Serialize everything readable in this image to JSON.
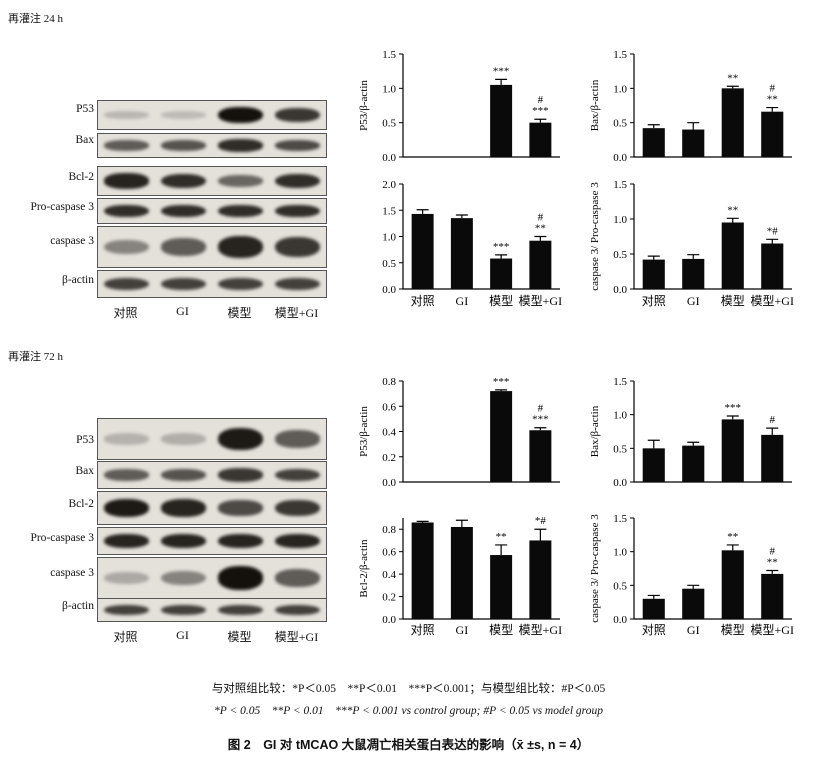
{
  "sections": [
    {
      "id": "s24",
      "label": "再灌注 24 h",
      "blot_rows": [
        "P53",
        "Bax",
        "Bcl-2",
        "Pro-caspase 3",
        "caspase 3",
        "β-actin"
      ],
      "blot_groups": [
        "对照",
        "GI",
        "模型",
        "模型+GI"
      ],
      "blot_intensity": [
        [
          0.08,
          0.06,
          0.95,
          0.75
        ],
        [
          0.55,
          0.6,
          0.8,
          0.65
        ],
        [
          0.85,
          0.8,
          0.5,
          0.8
        ],
        [
          0.8,
          0.8,
          0.8,
          0.8
        ],
        [
          0.35,
          0.55,
          0.85,
          0.75
        ],
        [
          0.7,
          0.7,
          0.7,
          0.7
        ]
      ],
      "charts": [
        {
          "ylabel": "P53/β-actin",
          "ylim": [
            0,
            1.5
          ],
          "ticks": [
            "0.0",
            "0.5",
            "1.0",
            "1.5"
          ],
          "tick_vals": [
            0,
            0.5,
            1.0,
            1.5
          ],
          "values": [
            0,
            0,
            1.05,
            0.5
          ],
          "errors": [
            0,
            0,
            0.08,
            0.05
          ],
          "sig": [
            [
              "",
              ""
            ],
            [
              "",
              ""
            ],
            [
              "***",
              ""
            ],
            [
              "***",
              "#"
            ]
          ]
        },
        {
          "ylabel": "Bax/β-actin",
          "ylim": [
            0,
            1.5
          ],
          "ticks": [
            "0.0",
            "0.5",
            "1.0",
            "1.5"
          ],
          "tick_vals": [
            0,
            0.5,
            1.0,
            1.5
          ],
          "values": [
            0.42,
            0.4,
            1.0,
            0.66
          ],
          "errors": [
            0.05,
            0.1,
            0.03,
            0.06
          ],
          "sig": [
            [
              "",
              ""
            ],
            [
              "",
              ""
            ],
            [
              "**",
              ""
            ],
            [
              "**",
              "#"
            ]
          ]
        },
        {
          "ylabel": "",
          "ylim": [
            0,
            2.0
          ],
          "ticks": [
            "0.0",
            "0.5",
            "1.0",
            "1.5",
            "2.0"
          ],
          "tick_vals": [
            0,
            0.5,
            1.0,
            1.5,
            2.0
          ],
          "values": [
            1.43,
            1.35,
            0.58,
            0.92
          ],
          "errors": [
            0.08,
            0.06,
            0.07,
            0.08
          ],
          "sig": [
            [
              "",
              ""
            ],
            [
              "",
              ""
            ],
            [
              "***",
              ""
            ],
            [
              "**",
              "#"
            ]
          ]
        },
        {
          "ylabel": "caspase 3/ Pro-caspase 3",
          "ylim": [
            0,
            1.5
          ],
          "ticks": [
            "0.0",
            "0.5",
            "1.0",
            "1.5"
          ],
          "tick_vals": [
            0,
            0.5,
            1.0,
            1.5
          ],
          "values": [
            0.42,
            0.43,
            0.95,
            0.65
          ],
          "errors": [
            0.05,
            0.06,
            0.06,
            0.06
          ],
          "sig": [
            [
              "",
              ""
            ],
            [
              "",
              ""
            ],
            [
              "**",
              ""
            ],
            [
              "*#",
              ""
            ]
          ]
        }
      ],
      "x_groups": [
        "对照",
        "GI",
        "模型",
        "模型+GI"
      ]
    },
    {
      "id": "s72",
      "label": "再灌注 72 h",
      "blot_rows": [
        "P53",
        "Bax",
        "Bcl-2",
        "Pro-caspase 3",
        "caspase 3",
        "β-actin"
      ],
      "blot_groups": [
        "对照",
        "GI",
        "模型",
        "模型+GI"
      ],
      "blot_intensity": [
        [
          0.1,
          0.12,
          0.9,
          0.55
        ],
        [
          0.55,
          0.6,
          0.75,
          0.7
        ],
        [
          0.9,
          0.85,
          0.65,
          0.75
        ],
        [
          0.85,
          0.85,
          0.85,
          0.85
        ],
        [
          0.15,
          0.35,
          0.95,
          0.55
        ],
        [
          0.7,
          0.7,
          0.7,
          0.7
        ]
      ],
      "charts": [
        {
          "ylabel": "P53/β-actin",
          "ylim": [
            0,
            0.8
          ],
          "ticks": [
            "0.0",
            "0.2",
            "0.4",
            "0.6",
            "0.8"
          ],
          "tick_vals": [
            0,
            0.2,
            0.4,
            0.6,
            0.8
          ],
          "values": [
            0,
            0,
            0.72,
            0.41
          ],
          "errors": [
            0,
            0,
            0.01,
            0.02
          ],
          "sig": [
            [
              "",
              ""
            ],
            [
              "",
              ""
            ],
            [
              "***",
              ""
            ],
            [
              "***",
              "#"
            ]
          ]
        },
        {
          "ylabel": "Bax/β-actin",
          "ylim": [
            0,
            1.5
          ],
          "ticks": [
            "0.0",
            "0.5",
            "1.0",
            "1.5"
          ],
          "tick_vals": [
            0,
            0.5,
            1.0,
            1.5
          ],
          "values": [
            0.5,
            0.54,
            0.93,
            0.7
          ],
          "errors": [
            0.12,
            0.05,
            0.05,
            0.1
          ],
          "sig": [
            [
              "",
              ""
            ],
            [
              "",
              ""
            ],
            [
              "***",
              ""
            ],
            [
              "#",
              ""
            ]
          ]
        },
        {
          "ylabel": "Bcl-2/β-actin",
          "ylim": [
            0,
            0.9
          ],
          "ticks": [
            "0.0",
            "0.2",
            "0.4",
            "0.6",
            "0.8"
          ],
          "tick_vals": [
            0,
            0.2,
            0.4,
            0.6,
            0.8
          ],
          "values": [
            0.86,
            0.82,
            0.57,
            0.7
          ],
          "errors": [
            0.01,
            0.06,
            0.09,
            0.1
          ],
          "sig": [
            [
              "",
              ""
            ],
            [
              "",
              ""
            ],
            [
              "**",
              ""
            ],
            [
              "*#",
              ""
            ]
          ]
        },
        {
          "ylabel": "caspase 3/ Pro-caspase 3",
          "ylim": [
            0,
            1.5
          ],
          "ticks": [
            "0.0",
            "0.5",
            "1.0",
            "1.5"
          ],
          "tick_vals": [
            0,
            0.5,
            1.0,
            1.5
          ],
          "values": [
            0.3,
            0.45,
            1.02,
            0.67
          ],
          "errors": [
            0.05,
            0.05,
            0.08,
            0.05
          ],
          "sig": [
            [
              "",
              ""
            ],
            [
              "",
              ""
            ],
            [
              "**",
              ""
            ],
            [
              "**",
              "#"
            ]
          ]
        }
      ],
      "x_groups": [
        "对照",
        "GI",
        "模型",
        "模型+GI"
      ]
    }
  ],
  "footnote_cn": "与对照组比较：*P＜0.05　**P＜0.01　***P＜0.001；与模型组比较：#P＜0.05",
  "footnote_en": "*P < 0.05　**P < 0.01　***P < 0.001 vs control group; #P < 0.05 vs model group",
  "figure_title": "图 2　GI 对 tMCAO 大鼠凋亡相关蛋白表达的影响（x̄ ±s, n = 4）",
  "chart_data": [
    {
      "type": "bar",
      "title": "",
      "ylabel": "P53/β-actin",
      "categories": [
        "对照",
        "GI",
        "模型",
        "模型+GI"
      ],
      "values": [
        0,
        0,
        1.05,
        0.5
      ],
      "ylim": [
        0,
        1.5
      ]
    },
    {
      "type": "bar",
      "title": "",
      "ylabel": "Bax/β-actin",
      "categories": [
        "对照",
        "GI",
        "模型",
        "模型+GI"
      ],
      "values": [
        0.42,
        0.4,
        1.0,
        0.66
      ],
      "ylim": [
        0,
        1.5
      ]
    },
    {
      "type": "bar",
      "title": "",
      "ylabel": "",
      "categories": [
        "对照",
        "GI",
        "模型",
        "模型+GI"
      ],
      "values": [
        1.43,
        1.35,
        0.58,
        0.92
      ],
      "ylim": [
        0,
        2.0
      ]
    },
    {
      "type": "bar",
      "title": "",
      "ylabel": "caspase 3/ Pro-caspase 3",
      "categories": [
        "对照",
        "GI",
        "模型",
        "模型+GI"
      ],
      "values": [
        0.42,
        0.43,
        0.95,
        0.65
      ],
      "ylim": [
        0,
        1.5
      ]
    },
    {
      "type": "bar",
      "title": "",
      "ylabel": "P53/β-actin",
      "categories": [
        "对照",
        "GI",
        "模型",
        "模型+GI"
      ],
      "values": [
        0,
        0,
        0.72,
        0.41
      ],
      "ylim": [
        0,
        0.8
      ]
    },
    {
      "type": "bar",
      "title": "",
      "ylabel": "Bax/β-actin",
      "categories": [
        "对照",
        "GI",
        "模型",
        "模型+GI"
      ],
      "values": [
        0.5,
        0.54,
        0.93,
        0.7
      ],
      "ylim": [
        0,
        1.5
      ]
    },
    {
      "type": "bar",
      "title": "",
      "ylabel": "Bcl-2/β-actin",
      "categories": [
        "对照",
        "GI",
        "模型",
        "模型+GI"
      ],
      "values": [
        0.86,
        0.82,
        0.57,
        0.7
      ],
      "ylim": [
        0,
        0.9
      ]
    },
    {
      "type": "bar",
      "title": "",
      "ylabel": "caspase 3/ Pro-caspase 3",
      "categories": [
        "对照",
        "GI",
        "模型",
        "模型+GI"
      ],
      "values": [
        0.3,
        0.45,
        1.02,
        0.67
      ],
      "ylim": [
        0,
        1.5
      ]
    }
  ]
}
